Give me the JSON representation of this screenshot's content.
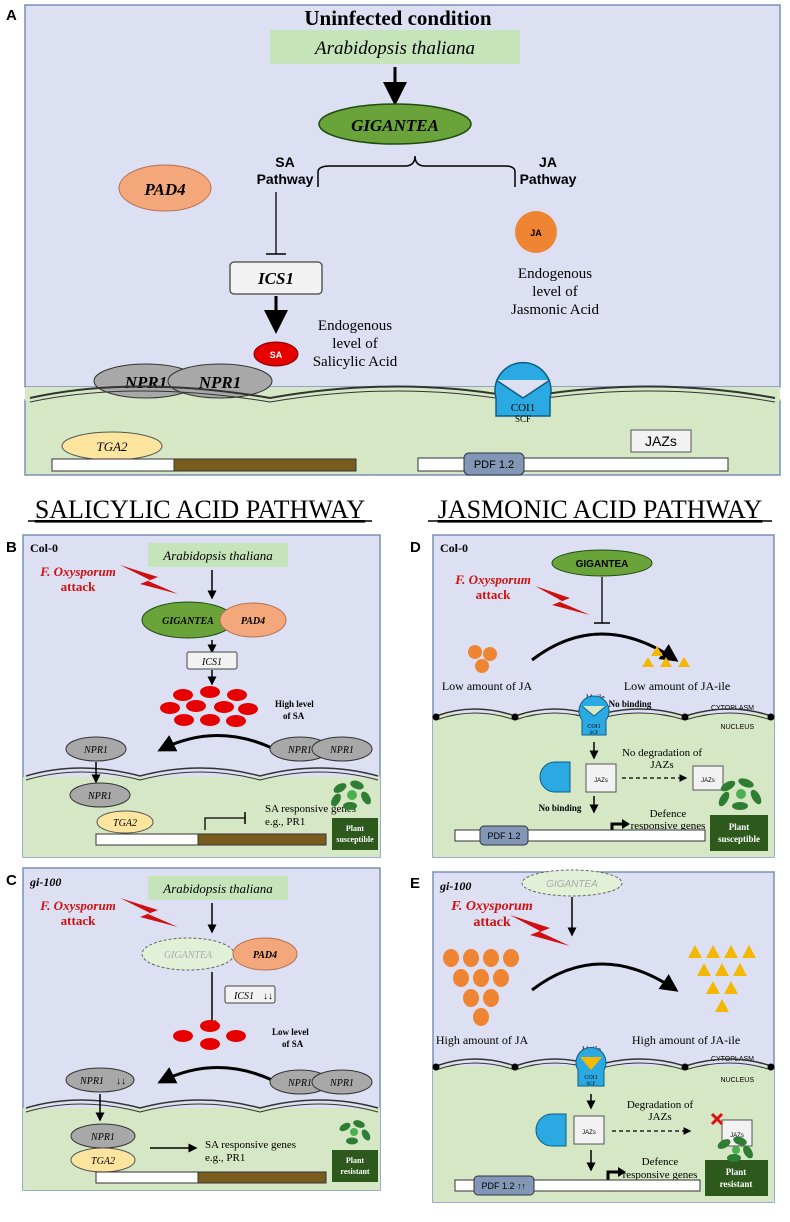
{
  "panel_a": {
    "letter": "A",
    "title": "Uninfected condition",
    "species": "Arabidopsis thaliana",
    "gigantea": "GIGANTEA",
    "sa_line1": "SA",
    "sa_line2": "Pathway",
    "ja_line1": "JA",
    "ja_line2": "Pathway",
    "pad4": "PAD4",
    "ics1": "ICS1",
    "sa": "SA",
    "ja": "JA",
    "sa_level": [
      "Endogenous",
      "level of",
      "Salicylic Acid"
    ],
    "ja_level": [
      "Endogenous",
      "level of",
      "Jasmonic Acid"
    ],
    "npr1": "NPR1",
    "coi1": "COI1",
    "scf": "SCF",
    "jazs": "JAZs",
    "tga2": "TGA2",
    "pdf12": "PDF 1.2"
  },
  "headings": {
    "left": "SALICYLIC ACID PATHWAY",
    "right": "JASMONIC ACID PATHWAY"
  },
  "panel_b": {
    "letter": "B",
    "genotype": "Col-0",
    "species": "Arabidopsis thaliana",
    "attack1": "F. Oxysporum",
    "attack2": "attack",
    "gigantea": "GIGANTEA",
    "pad4": "PAD4",
    "ics1": "ICS1",
    "sa": "SA",
    "level1": "High level",
    "level2": "of SA",
    "npr1": "NPR1",
    "tga2": "TGA2",
    "genes1": "SA responsive genes",
    "genes2": "e.g., PR1",
    "out1": "Plant",
    "out2": "susceptible"
  },
  "panel_c": {
    "letter": "C",
    "genotype": "gi-100",
    "species": "Arabidopsis thaliana",
    "attack1": "F. Oxysporum",
    "attack2": "attack",
    "gigantea": "GIGANTEA",
    "pad4": "PAD4",
    "ics1": "ICS1",
    "sa": "SA",
    "level1": "Low level",
    "level2": "of SA",
    "npr1": "NPR1",
    "tga2": "TGA2",
    "genes1": "SA responsive genes",
    "genes2": "e.g., PR1",
    "out1": "Plant",
    "out2": "resistant"
  },
  "panel_d": {
    "letter": "D",
    "genotype": "Col-0",
    "gigantea": "GIGANTEA",
    "attack1": "F. Oxysporum",
    "attack2": "attack",
    "ja_amount": "Low amount of JA",
    "jaile_amount": "Low amount of JA-ile",
    "jaile": "JA-ile",
    "binding": "No binding",
    "cytoplasm": "CYTOPLASM",
    "nucleus": "NUCLEUS",
    "coi1": "COI1",
    "scf": "SCF",
    "jazs": "JAZs",
    "degr1": "No degradation of",
    "degr2": "JAZs",
    "defence1": "Defence",
    "defence2": "responsive genes",
    "pdf12": "PDF 1.2",
    "out1": "Plant",
    "out2": "susceptible"
  },
  "panel_e": {
    "letter": "E",
    "genotype": "gi-100",
    "gigantea": "GIGANTEA",
    "attack1": "F. Oxysporum",
    "attack2": "attack",
    "ja_amount": "High amount of JA",
    "jaile_amount": "High amount of JA-ile",
    "jaile": "JA-ile",
    "cytoplasm": "CYTOPLASM",
    "nucleus": "NUCLEUS",
    "coi1": "COI1",
    "scf": "SCF",
    "jazs": "JAZs",
    "degr1": "Degradation of",
    "degr2": "JAZs",
    "defence1": "Defence",
    "defence2": "responsive genes",
    "pdf12": "PDF 1.2",
    "out1": "Plant",
    "out2": "resistant"
  }
}
